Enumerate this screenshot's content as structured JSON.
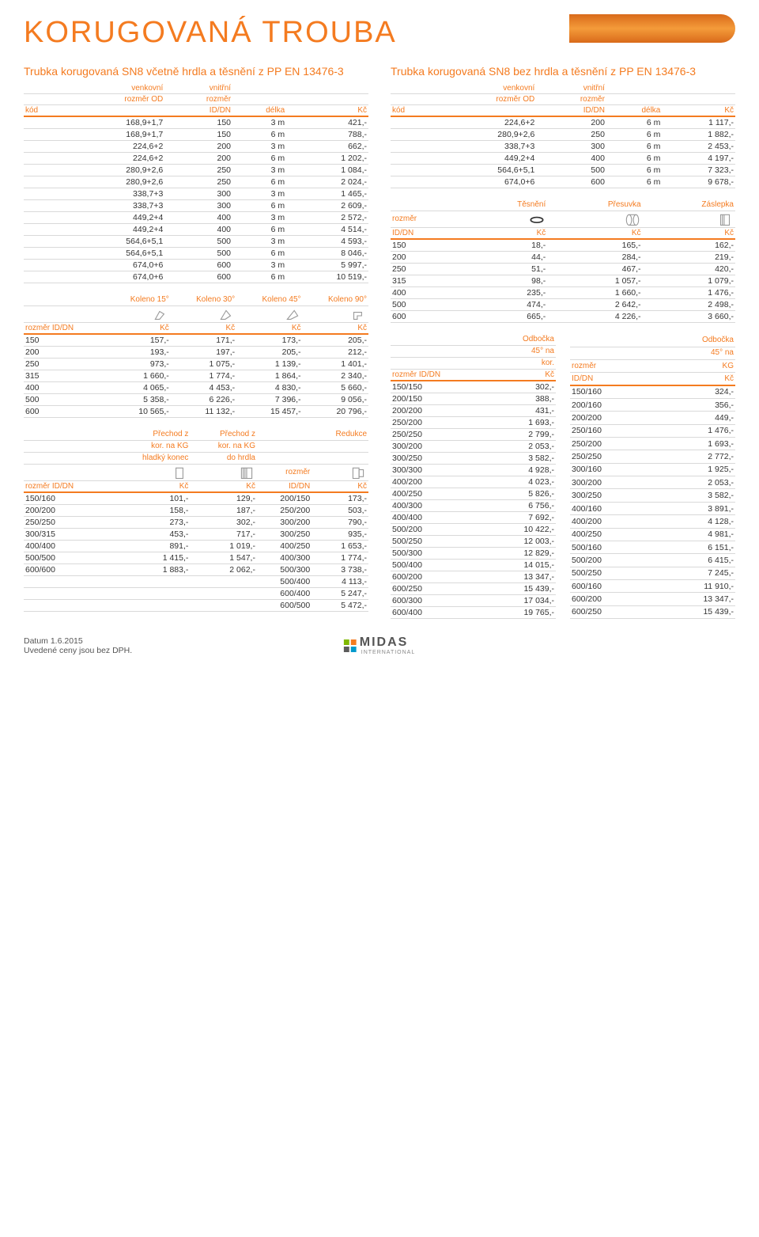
{
  "colors": {
    "accent": "#f47b20",
    "rule": "#d9d9d9",
    "text": "#333333",
    "bg": "#ffffff"
  },
  "page_title": "KORUGOVANÁ TROUBA",
  "footer_line1": "Datum 1.6.2015",
  "footer_line2": "Uvedené ceny jsou bez DPH.",
  "logo_text": "MIDAS",
  "logo_sub": "INTERNATIONAL",
  "left_title": "Trubka korugovaná SN8 včetně hrdla a těsnění z PP EN 13476-3",
  "right_title": "Trubka korugovaná SN8 bez hrdla a těsnění z PP EN 13476-3",
  "pipe_hdr": {
    "c0": "kód",
    "c1a": "venkovní",
    "c1b": "rozměr OD",
    "c2a": "vnitřní",
    "c2b": "rozměr",
    "c2c": "ID/DN",
    "c3": "délka",
    "c4": "Kč"
  },
  "left_pipe_rows": [
    [
      "",
      "168,9+1,7",
      "150",
      "3 m",
      "421,-"
    ],
    [
      "",
      "168,9+1,7",
      "150",
      "6 m",
      "788,-"
    ],
    [
      "",
      "224,6+2",
      "200",
      "3 m",
      "662,-"
    ],
    [
      "",
      "224,6+2",
      "200",
      "6 m",
      "1 202,-"
    ],
    [
      "",
      "280,9+2,6",
      "250",
      "3 m",
      "1 084,-"
    ],
    [
      "",
      "280,9+2,6",
      "250",
      "6 m",
      "2 024,-"
    ],
    [
      "",
      "338,7+3",
      "300",
      "3 m",
      "1 465,-"
    ],
    [
      "",
      "338,7+3",
      "300",
      "6 m",
      "2 609,-"
    ],
    [
      "",
      "449,2+4",
      "400",
      "3 m",
      "2 572,-"
    ],
    [
      "",
      "449,2+4",
      "400",
      "6 m",
      "4 514,-"
    ],
    [
      "",
      "564,6+5,1",
      "500",
      "3 m",
      "4 593,-"
    ],
    [
      "",
      "564,6+5,1",
      "500",
      "6 m",
      "8 046,-"
    ],
    [
      "",
      "674,0+6",
      "600",
      "3 m",
      "5 997,-"
    ],
    [
      "",
      "674,0+6",
      "600",
      "6 m",
      "10 519,-"
    ]
  ],
  "right_pipe_rows": [
    [
      "",
      "224,6+2",
      "200",
      "6 m",
      "1 117,-"
    ],
    [
      "",
      "280,9+2,6",
      "250",
      "6 m",
      "1 882,-"
    ],
    [
      "",
      "338,7+3",
      "300",
      "6 m",
      "2 453,-"
    ],
    [
      "",
      "449,2+4",
      "400",
      "6 m",
      "4 197,-"
    ],
    [
      "",
      "564,6+5,1",
      "500",
      "6 m",
      "7 323,-"
    ],
    [
      "",
      "674,0+6",
      "600",
      "6 m",
      "9 678,-"
    ]
  ],
  "koleno_hdr": {
    "size": "rozměr ID/DN",
    "a": "Koleno 15°",
    "b": "Koleno 30°",
    "c": "Koleno 45°",
    "d": "Koleno 90°",
    "unit": "Kč"
  },
  "koleno_rows": [
    [
      "150",
      "157,-",
      "171,-",
      "173,-",
      "205,-"
    ],
    [
      "200",
      "193,-",
      "197,-",
      "205,-",
      "212,-"
    ],
    [
      "250",
      "973,-",
      "1 075,-",
      "1 139,-",
      "1 401,-"
    ],
    [
      "315",
      "1 660,-",
      "1 774,-",
      "1 864,-",
      "2 340,-"
    ],
    [
      "400",
      "4 065,-",
      "4 453,-",
      "4 830,-",
      "5 660,-"
    ],
    [
      "500",
      "5 358,-",
      "6 226,-",
      "7 396,-",
      "9 056,-"
    ],
    [
      "600",
      "10 565,-",
      "11 132,-",
      "15 457,-",
      "20 796,-"
    ]
  ],
  "tpz_hdr": {
    "t": "Těsnění",
    "p": "Přesuvka",
    "z": "Záslepka",
    "size_a": "rozměr",
    "size_b": "ID/DN",
    "unit": "Kč"
  },
  "tpz_rows": [
    [
      "150",
      "18,-",
      "165,-",
      "162,-"
    ],
    [
      "200",
      "44,-",
      "284,-",
      "219,-"
    ],
    [
      "250",
      "51,-",
      "467,-",
      "420,-"
    ],
    [
      "315",
      "98,-",
      "1 057,-",
      "1 079,-"
    ],
    [
      "400",
      "235,-",
      "1 660,-",
      "1 476,-"
    ],
    [
      "500",
      "474,-",
      "2 642,-",
      "2 498,-"
    ],
    [
      "600",
      "665,-",
      "4 226,-",
      "3 660,-"
    ]
  ],
  "prechod_hdr": {
    "a1": "Přechod z",
    "a2": "kor. na KG",
    "a3": "hladký konec",
    "b1": "Přechod z",
    "b2": "kor. na KG",
    "b3": "do hrdla",
    "c": "Redukce",
    "size": "rozměr ID/DN",
    "size2a": "rozměr",
    "size2b": "ID/DN",
    "unit": "Kč"
  },
  "prechod_rows": [
    [
      "150/160",
      "101,-",
      "129,-",
      "200/150",
      "173,-"
    ],
    [
      "200/200",
      "158,-",
      "187,-",
      "250/200",
      "503,-"
    ],
    [
      "250/250",
      "273,-",
      "302,-",
      "300/200",
      "790,-"
    ],
    [
      "300/315",
      "453,-",
      "717,-",
      "300/250",
      "935,-"
    ],
    [
      "400/400",
      "891,-",
      "1 019,-",
      "400/250",
      "1 653,-"
    ],
    [
      "500/500",
      "1 415,-",
      "1 547,-",
      "400/300",
      "1 774,-"
    ],
    [
      "600/600",
      "1 883,-",
      "2 062,-",
      "500/300",
      "3 738,-"
    ],
    [
      "",
      "",
      "",
      "500/400",
      "4 113,-"
    ],
    [
      "",
      "",
      "",
      "600/400",
      "5 247,-"
    ],
    [
      "",
      "",
      "",
      "600/500",
      "5 472,-"
    ]
  ],
  "odb_kor_title1": "Odbočka",
  "odb_kor_title2": "45° na",
  "odb_kor_title3": "kor.",
  "odb_kg_title1": "Odbočka",
  "odb_kg_title2": "45° na",
  "odb_kg_title3": "KG",
  "odb_size1": "rozměr ID/DN",
  "odb_size2a": "rozměr",
  "odb_size2b": "ID/DN",
  "odb_kor_rows": [
    [
      "150/150",
      "302,-"
    ],
    [
      "200/150",
      "388,-"
    ],
    [
      "200/200",
      "431,-"
    ],
    [
      "250/200",
      "1 693,-"
    ],
    [
      "250/250",
      "2 799,-"
    ],
    [
      "300/200",
      "2 053,-"
    ],
    [
      "300/250",
      "3 582,-"
    ],
    [
      "300/300",
      "4 928,-"
    ],
    [
      "400/200",
      "4 023,-"
    ],
    [
      "400/250",
      "5 826,-"
    ],
    [
      "400/300",
      "6 756,-"
    ],
    [
      "400/400",
      "7 692,-"
    ],
    [
      "500/200",
      "10 422,-"
    ],
    [
      "500/250",
      "12 003,-"
    ],
    [
      "500/300",
      "12 829,-"
    ],
    [
      "500/400",
      "14 015,-"
    ],
    [
      "600/200",
      "13 347,-"
    ],
    [
      "600/250",
      "15 439,-"
    ],
    [
      "600/300",
      "17 034,-"
    ],
    [
      "600/400",
      "19 765,-"
    ]
  ],
  "odb_kg_rows": [
    [
      "150/160",
      "324,-"
    ],
    [
      "200/160",
      "356,-"
    ],
    [
      "200/200",
      "449,-"
    ],
    [
      "250/160",
      "1 476,-"
    ],
    [
      "250/200",
      "1 693,-"
    ],
    [
      "250/250",
      "2 772,-"
    ],
    [
      "300/160",
      "1 925,-"
    ],
    [
      "300/200",
      "2 053,-"
    ],
    [
      "300/250",
      "3 582,-"
    ],
    [
      "400/160",
      "3 891,-"
    ],
    [
      "400/200",
      "4 128,-"
    ],
    [
      "400/250",
      "4 981,-"
    ],
    [
      "500/160",
      "6 151,-"
    ],
    [
      "500/200",
      "6 415,-"
    ],
    [
      "500/250",
      "7 245,-"
    ],
    [
      "600/160",
      "11 910,-"
    ],
    [
      "600/200",
      "13 347,-"
    ],
    [
      "600/250",
      "15 439,-"
    ]
  ]
}
